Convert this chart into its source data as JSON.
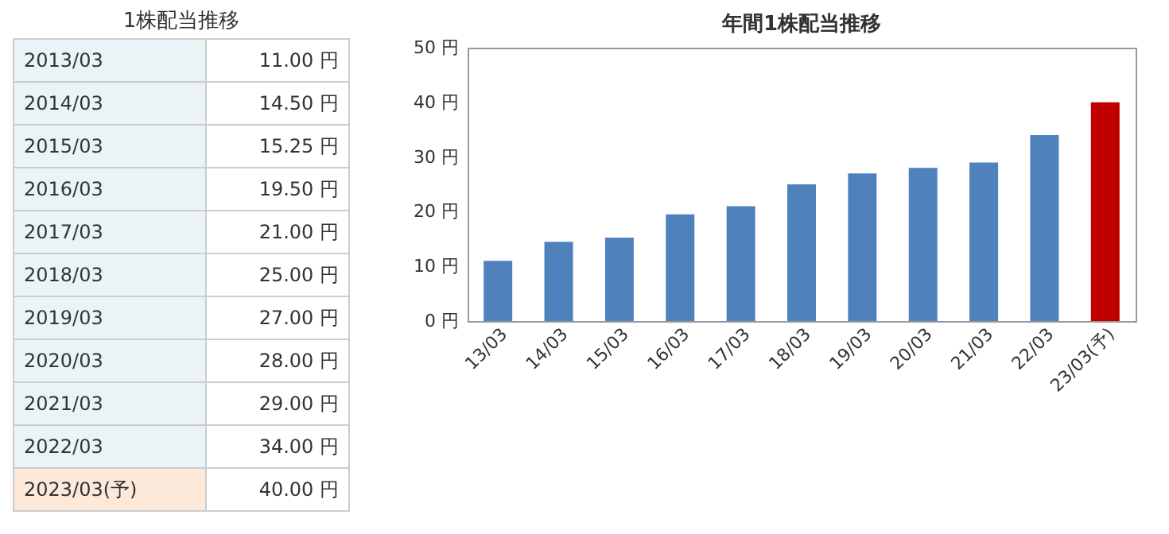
{
  "chart_data": [
    {
      "type": "other",
      "title": "1株配当推移",
      "categories": [
        "2013/03",
        "2014/03",
        "2015/03",
        "2016/03",
        "2017/03",
        "2018/03",
        "2019/03",
        "2020/03",
        "2021/03",
        "2022/03",
        "2023/03(予)"
      ],
      "value_labels": [
        "11.00 円",
        "14.50 円",
        "15.25 円",
        "19.50 円",
        "21.00 円",
        "25.00 円",
        "27.00 円",
        "28.00 円",
        "29.00 円",
        "34.00 円",
        "40.00 円"
      ]
    },
    {
      "type": "bar",
      "title": "年間1株配当推移",
      "categories": [
        "13/03",
        "14/03",
        "15/03",
        "16/03",
        "17/03",
        "18/03",
        "19/03",
        "20/03",
        "21/03",
        "22/03",
        "23/03(予)"
      ],
      "values": [
        11.0,
        14.5,
        15.25,
        19.5,
        21.0,
        25.0,
        27.0,
        28.0,
        29.0,
        34.0,
        40.0
      ],
      "colors": [
        "#4f81bd",
        "#4f81bd",
        "#4f81bd",
        "#4f81bd",
        "#4f81bd",
        "#4f81bd",
        "#4f81bd",
        "#4f81bd",
        "#4f81bd",
        "#4f81bd",
        "#c00000"
      ],
      "ylim": [
        0,
        50
      ],
      "yticks": [
        {
          "value": 0,
          "label": "0 円"
        },
        {
          "value": 10,
          "label": "10 円"
        },
        {
          "value": 20,
          "label": "20 円"
        },
        {
          "value": 30,
          "label": "30 円"
        },
        {
          "value": 40,
          "label": "40 円"
        },
        {
          "value": 50,
          "label": "50 円"
        }
      ]
    }
  ]
}
